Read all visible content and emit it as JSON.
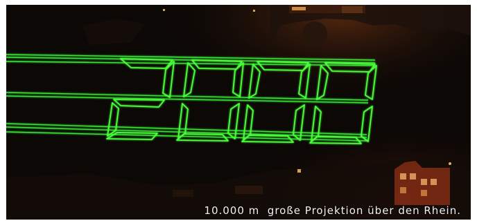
{
  "photo": {
    "subject": "Green laser projection of the number 2000 over a river at night, hillside fortress with lights in the background",
    "projected_text": "2000",
    "laser_color": "#3cff3c",
    "caption": "10.000 m  große Projektion über den Rhein."
  }
}
